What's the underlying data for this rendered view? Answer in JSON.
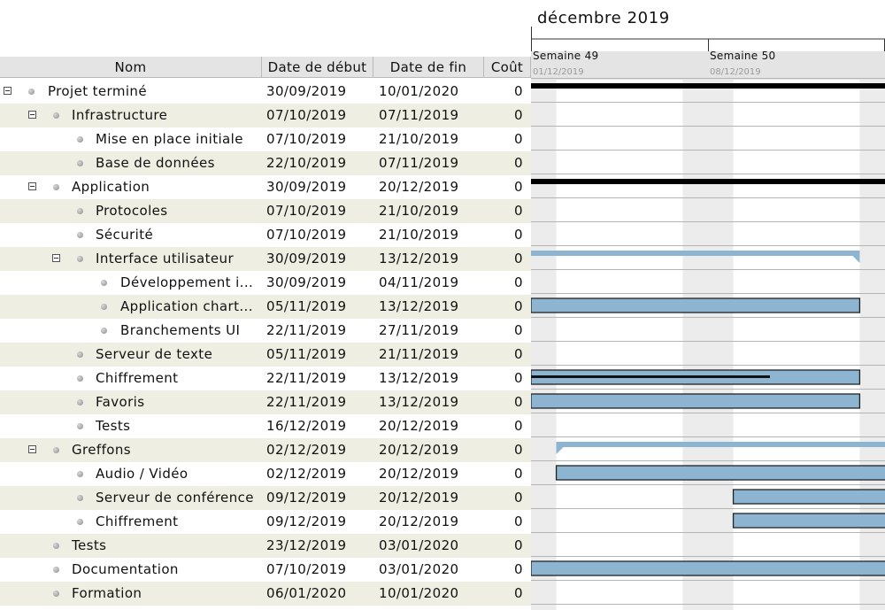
{
  "columns": {
    "name": "Nom",
    "start": "Date de début",
    "end": "Date de fin",
    "cost": "Coût"
  },
  "timeline": {
    "month": "décembre 2019",
    "weeks": [
      {
        "label": "Semaine 49",
        "date": "01/12/2019"
      },
      {
        "label": "Semaine 50",
        "date": "08/12/2019"
      }
    ]
  },
  "colors": {
    "bar_fill": "#8db5d1",
    "summary_bar": "#000000",
    "weekend_shade": "#ececec",
    "alt_row": "#eeeee2"
  },
  "rows": [
    {
      "name": "Projet terminé",
      "level": 0,
      "toggle": true,
      "start": "30/09/2019",
      "end": "10/01/2020",
      "cost": "0"
    },
    {
      "name": "Infrastructure",
      "level": 1,
      "toggle": true,
      "start": "07/10/2019",
      "end": "07/11/2019",
      "cost": "0"
    },
    {
      "name": "Mise en place initiale",
      "level": 2,
      "toggle": false,
      "start": "07/10/2019",
      "end": "21/10/2019",
      "cost": "0"
    },
    {
      "name": "Base de données",
      "level": 2,
      "toggle": false,
      "start": "22/10/2019",
      "end": "07/11/2019",
      "cost": "0"
    },
    {
      "name": "Application",
      "level": 1,
      "toggle": true,
      "start": "30/09/2019",
      "end": "20/12/2019",
      "cost": "0"
    },
    {
      "name": "Protocoles",
      "level": 2,
      "toggle": false,
      "start": "07/10/2019",
      "end": "21/10/2019",
      "cost": "0"
    },
    {
      "name": "Sécurité",
      "level": 2,
      "toggle": false,
      "start": "07/10/2019",
      "end": "21/10/2019",
      "cost": "0"
    },
    {
      "name": "Interface utilisateur",
      "level": 2,
      "toggle": true,
      "start": "30/09/2019",
      "end": "13/12/2019",
      "cost": "0"
    },
    {
      "name": "Développement i...",
      "level": 3,
      "toggle": false,
      "start": "30/09/2019",
      "end": "04/11/2019",
      "cost": "0"
    },
    {
      "name": "Application chart...",
      "level": 3,
      "toggle": false,
      "start": "05/11/2019",
      "end": "13/12/2019",
      "cost": "0"
    },
    {
      "name": "Branchements UI",
      "level": 3,
      "toggle": false,
      "start": "22/11/2019",
      "end": "27/11/2019",
      "cost": "0"
    },
    {
      "name": "Serveur de texte",
      "level": 2,
      "toggle": false,
      "start": "05/11/2019",
      "end": "21/11/2019",
      "cost": "0"
    },
    {
      "name": "Chiffrement",
      "level": 2,
      "toggle": false,
      "start": "22/11/2019",
      "end": "13/12/2019",
      "cost": "0"
    },
    {
      "name": "Favoris",
      "level": 2,
      "toggle": false,
      "start": "22/11/2019",
      "end": "13/12/2019",
      "cost": "0"
    },
    {
      "name": "Tests",
      "level": 2,
      "toggle": false,
      "start": "16/12/2019",
      "end": "20/12/2019",
      "cost": "0"
    },
    {
      "name": "Greffons",
      "level": 1,
      "toggle": true,
      "start": "02/12/2019",
      "end": "20/12/2019",
      "cost": "0"
    },
    {
      "name": "Audio / Vidéo",
      "level": 2,
      "toggle": false,
      "start": "02/12/2019",
      "end": "20/12/2019",
      "cost": "0"
    },
    {
      "name": "Serveur de conférence",
      "level": 2,
      "toggle": false,
      "start": "09/12/2019",
      "end": "20/12/2019",
      "cost": "0"
    },
    {
      "name": "Chiffrement",
      "level": 2,
      "toggle": false,
      "start": "09/12/2019",
      "end": "20/12/2019",
      "cost": "0"
    },
    {
      "name": "Tests",
      "level": 1,
      "toggle": false,
      "start": "23/12/2019",
      "end": "03/01/2020",
      "cost": "0"
    },
    {
      "name": "Documentation",
      "level": 1,
      "toggle": false,
      "start": "07/10/2019",
      "end": "03/01/2020",
      "cost": "0"
    },
    {
      "name": "Formation",
      "level": 1,
      "toggle": false,
      "start": "06/01/2020",
      "end": "10/01/2020",
      "cost": "0"
    }
  ]
}
